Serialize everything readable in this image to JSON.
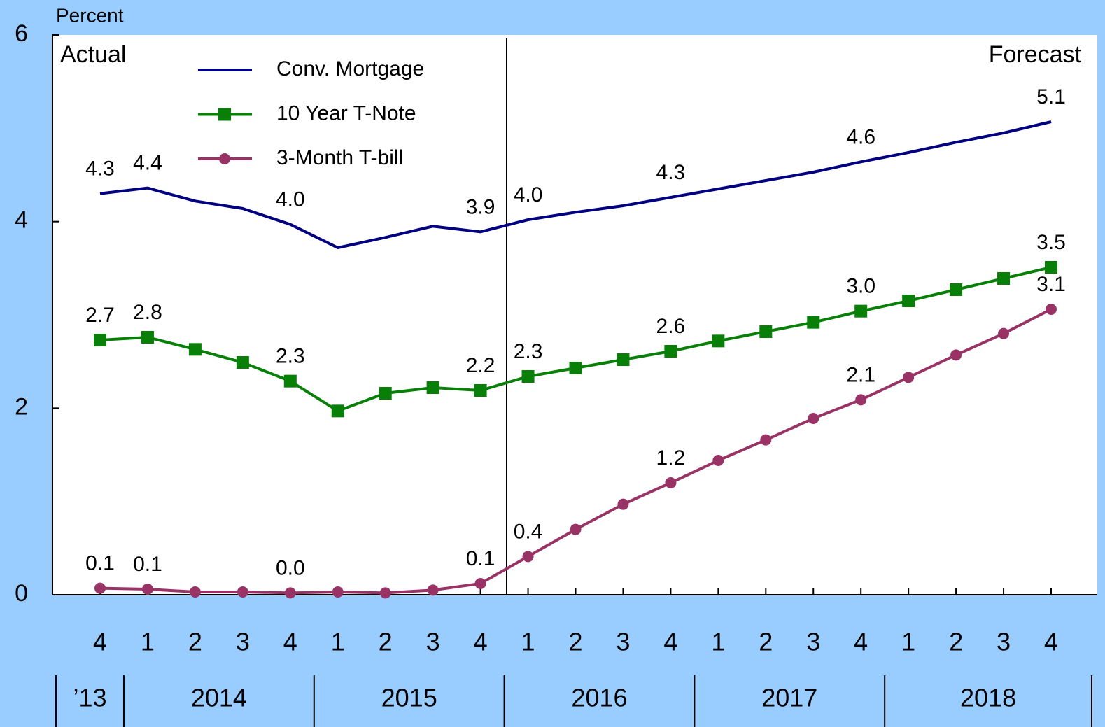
{
  "chart_data": {
    "type": "line",
    "y_axis_label": "Percent",
    "annotations": [
      "Actual",
      "Forecast"
    ],
    "categories": [
      "4",
      "1",
      "2",
      "3",
      "4",
      "1",
      "2",
      "3",
      "4",
      "1",
      "2",
      "3",
      "4",
      "1",
      "2",
      "3",
      "4",
      "1",
      "2",
      "3",
      "4"
    ],
    "years": [
      "’13",
      "2014",
      "2015",
      "2016",
      "2017",
      "2018"
    ],
    "ylim": [
      0,
      6
    ],
    "yticks": [
      0,
      2,
      4,
      6
    ],
    "series": [
      {
        "name": "Conv. Mortgage",
        "color": "#000080",
        "marker": "none",
        "values": [
          4.3,
          4.36,
          4.22,
          4.14,
          3.97,
          3.72,
          3.83,
          3.95,
          3.89,
          4.02,
          4.1,
          4.17,
          4.26,
          4.35,
          4.44,
          4.53,
          4.64,
          4.74,
          4.85,
          4.95,
          5.07
        ],
        "value_labels": [
          "4.3",
          "4.4",
          null,
          null,
          "4.0",
          null,
          null,
          null,
          "3.9",
          "4.0",
          null,
          null,
          "4.3",
          null,
          null,
          null,
          "4.6",
          null,
          null,
          null,
          "5.1"
        ]
      },
      {
        "name": "10 Year T-Note",
        "color": "#088008",
        "marker": "square",
        "values": [
          2.73,
          2.76,
          2.63,
          2.49,
          2.29,
          1.97,
          2.16,
          2.22,
          2.19,
          2.34,
          2.43,
          2.52,
          2.61,
          2.72,
          2.82,
          2.92,
          3.04,
          3.15,
          3.27,
          3.39,
          3.51
        ],
        "value_labels": [
          "2.7",
          "2.8",
          null,
          null,
          "2.3",
          null,
          null,
          null,
          "2.2",
          "2.3",
          null,
          null,
          "2.6",
          null,
          null,
          null,
          "3.0",
          null,
          null,
          null,
          "3.5"
        ]
      },
      {
        "name": "3-Month T-bill",
        "color": "#993366",
        "marker": "circle",
        "values": [
          0.07,
          0.06,
          0.03,
          0.03,
          0.02,
          0.03,
          0.02,
          0.05,
          0.12,
          0.41,
          0.7,
          0.97,
          1.2,
          1.44,
          1.66,
          1.89,
          2.09,
          2.33,
          2.57,
          2.8,
          3.06
        ],
        "value_labels": [
          "0.1",
          "0.1",
          null,
          null,
          "0.0",
          null,
          null,
          null,
          "0.1",
          "0.4",
          null,
          null,
          "1.2",
          null,
          null,
          null,
          "2.1",
          null,
          null,
          null,
          "3.1"
        ]
      }
    ]
  }
}
